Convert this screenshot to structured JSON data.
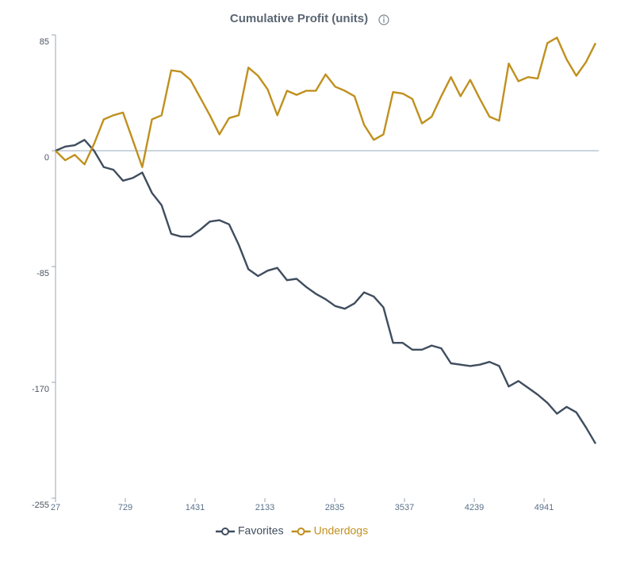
{
  "chart_data": {
    "type": "line",
    "title": "Cumulative Profit (units)",
    "x": [
      27,
      124,
      221,
      318,
      415,
      512,
      609,
      706,
      803,
      900,
      997,
      1094,
      1191,
      1288,
      1385,
      1482,
      1579,
      1676,
      1773,
      1870,
      1967,
      2064,
      2161,
      2258,
      2355,
      2452,
      2549,
      2646,
      2743,
      2840,
      2937,
      3034,
      3131,
      3228,
      3325,
      3422,
      3519,
      3616,
      3713,
      3810,
      3907,
      4004,
      4101,
      4198,
      4295,
      4392,
      4489,
      4586,
      4683,
      4780,
      4877,
      4974,
      5071,
      5168,
      5265,
      5362,
      5459
    ],
    "series": [
      {
        "name": "Favorites",
        "color": "#3f4d5e",
        "values": [
          0,
          3,
          4,
          8,
          0,
          -12,
          -14,
          -22,
          -20,
          -16,
          -31,
          -40,
          -61,
          -63,
          -63,
          -58,
          -52,
          -51,
          -54,
          -69,
          -87,
          -92,
          -88,
          -86,
          -95,
          -94,
          -100,
          -105,
          -109,
          -114,
          -116,
          -112,
          -104,
          -107,
          -115,
          -141,
          -141,
          -146,
          -146,
          -143,
          -145,
          -156,
          -157,
          -158,
          -157,
          -155,
          -158,
          -173,
          -169,
          -174,
          -179,
          -185,
          -193,
          -188,
          -192,
          -203,
          -215
        ]
      },
      {
        "name": "Underdogs",
        "color": "#c0901e",
        "values": [
          0,
          -7,
          -3,
          -10,
          5,
          23,
          26,
          28,
          8,
          -12,
          23,
          26,
          59,
          58,
          52,
          39,
          26,
          12,
          24,
          26,
          61,
          55,
          45,
          26,
          44,
          41,
          44,
          44,
          56,
          47,
          44,
          40,
          19,
          8,
          12,
          43,
          42,
          38,
          20,
          25,
          40,
          54,
          40,
          52,
          38,
          25,
          22,
          64,
          51,
          54,
          53,
          79,
          83,
          67,
          55,
          65,
          79
        ]
      }
    ],
    "xlim": [
      27,
      5491
    ],
    "xticks": [
      27,
      729,
      1431,
      2133,
      2835,
      3537,
      4239,
      4941
    ],
    "ylim": [
      -255,
      85
    ],
    "yticks": [
      85,
      0,
      -85,
      -170,
      -255
    ],
    "grid": false,
    "legend": "bottom"
  }
}
